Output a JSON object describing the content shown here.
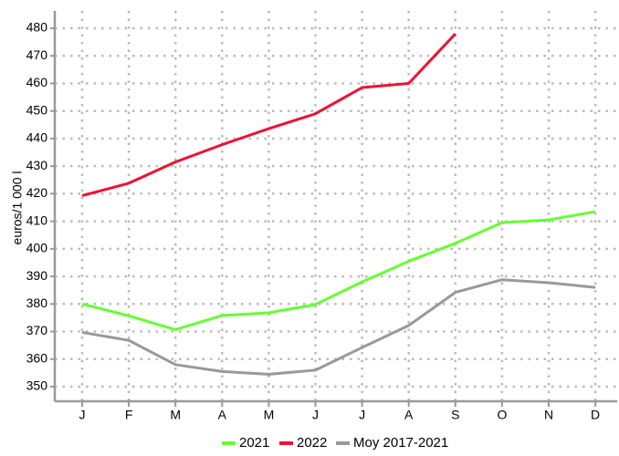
{
  "chart_data": {
    "type": "line",
    "y_label": "euros/1 000 l",
    "categories": [
      "J",
      "F",
      "M",
      "A",
      "M",
      "J",
      "J",
      "A",
      "S",
      "O",
      "N",
      "D"
    ],
    "series": [
      {
        "name": "2021",
        "color": "#66ff33",
        "values": [
          380,
          375.7,
          370.7,
          375.8,
          376.8,
          379.8,
          388,
          395.5,
          402,
          409.5,
          410.5,
          413.5
        ]
      },
      {
        "name": "2022",
        "color": "#ee1133",
        "values": [
          419.3,
          423.8,
          431.5,
          437.8,
          443.6,
          449,
          458.5,
          460,
          478,
          null,
          null,
          null
        ]
      },
      {
        "name": "Moy 2017-2021",
        "color": "#999999",
        "values": [
          369.7,
          366.8,
          358,
          355.5,
          354.5,
          356,
          364.2,
          372.2,
          384.2,
          388.8,
          387.7,
          386
        ]
      }
    ],
    "ylim": [
      344.7,
      486.3
    ],
    "yticks": [
      350,
      360,
      370,
      380,
      390,
      400,
      410,
      420,
      430,
      440,
      450,
      460,
      470,
      480
    ],
    "grid": true,
    "legend": "bottom"
  }
}
